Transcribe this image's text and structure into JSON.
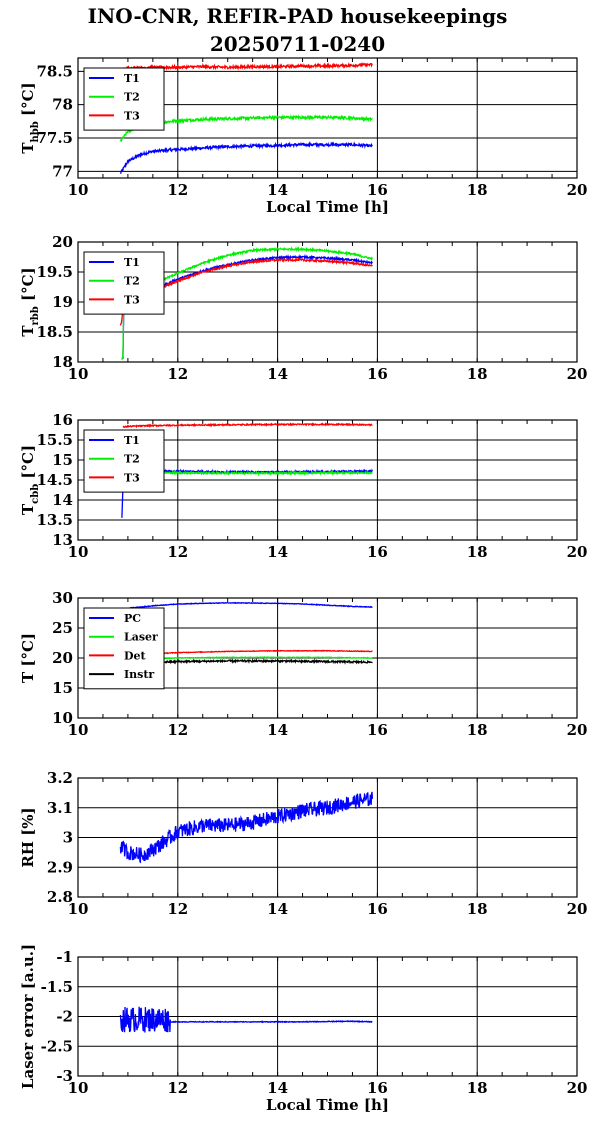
{
  "title_line1": "INO-CNR, REFIR-PAD housekeepings",
  "title_line2": "20250711-0240",
  "colors": {
    "blue": "#0000ff",
    "green": "#00ee00",
    "red": "#ff0000",
    "black": "#000000"
  },
  "chart_data": [
    {
      "type": "line",
      "ylabel_main": "T",
      "ylabel_sub": "hbb",
      "ylabel_unit": "[°C]",
      "xlabel": "Local Time [h]",
      "xlim": [
        10,
        20
      ],
      "xticks": [
        10,
        12,
        14,
        16,
        18,
        20
      ],
      "ylim": [
        76.9,
        78.7
      ],
      "yticks": [
        77,
        77.5,
        78,
        78.5
      ],
      "grid": true,
      "legend": "top-left",
      "series": [
        {
          "name": "T1",
          "color": "blue",
          "x": [
            10.85,
            11.0,
            11.25,
            11.5,
            12.0,
            12.5,
            13.0,
            13.5,
            14.0,
            14.5,
            15.0,
            15.5,
            15.9
          ],
          "y": [
            76.97,
            77.15,
            77.25,
            77.3,
            77.33,
            77.35,
            77.37,
            77.38,
            77.39,
            77.4,
            77.4,
            77.4,
            77.38
          ],
          "noise": 0.02
        },
        {
          "name": "T2",
          "color": "green",
          "x": [
            10.85,
            11.0,
            11.25,
            11.5,
            12.0,
            12.5,
            13.0,
            13.5,
            14.0,
            14.5,
            15.0,
            15.5,
            15.9
          ],
          "y": [
            77.45,
            77.6,
            77.68,
            77.72,
            77.76,
            77.78,
            77.79,
            77.8,
            77.81,
            77.81,
            77.81,
            77.8,
            77.78
          ],
          "noise": 0.02
        },
        {
          "name": "T3",
          "color": "red",
          "x": [
            10.85,
            11.0,
            11.5,
            12.0,
            12.5,
            13.0,
            13.5,
            14.0,
            14.5,
            15.0,
            15.5,
            15.9
          ],
          "y": [
            78.52,
            78.55,
            78.56,
            78.56,
            78.57,
            78.56,
            78.57,
            78.57,
            78.58,
            78.58,
            78.59,
            78.6
          ],
          "noise": 0.02
        }
      ]
    },
    {
      "type": "line",
      "ylabel_main": "T",
      "ylabel_sub": "rbb",
      "ylabel_unit": "[°C]",
      "xlim": [
        10,
        20
      ],
      "xticks": [
        10,
        12,
        14,
        16,
        18,
        20
      ],
      "ylim": [
        18,
        20
      ],
      "yticks": [
        18,
        18.5,
        19,
        19.5,
        20
      ],
      "grid": true,
      "legend": "top-left",
      "series": [
        {
          "name": "T1",
          "color": "blue",
          "x": [
            10.9,
            10.92,
            11.0,
            11.5,
            12.0,
            12.5,
            13.0,
            13.5,
            14.0,
            14.5,
            15.0,
            15.5,
            15.9
          ],
          "y": [
            18.05,
            19.0,
            19.1,
            19.2,
            19.38,
            19.52,
            19.62,
            19.7,
            19.74,
            19.75,
            19.73,
            19.7,
            19.65
          ],
          "noise": 0.015
        },
        {
          "name": "T2",
          "color": "green",
          "x": [
            10.88,
            10.9,
            10.92,
            11.0,
            11.5,
            12.0,
            12.5,
            13.0,
            13.5,
            14.0,
            14.5,
            15.0,
            15.5,
            15.9
          ],
          "y": [
            18.05,
            18.1,
            19.1,
            19.2,
            19.3,
            19.48,
            19.65,
            19.78,
            19.86,
            19.88,
            19.88,
            19.85,
            19.8,
            19.72
          ],
          "noise": 0.015
        },
        {
          "name": "T3",
          "color": "red",
          "x": [
            10.85,
            10.88,
            10.92,
            11.0,
            11.5,
            12.0,
            12.5,
            13.0,
            13.5,
            14.0,
            14.5,
            15.0,
            15.5,
            15.9
          ],
          "y": [
            18.6,
            18.7,
            19.05,
            19.08,
            19.18,
            19.35,
            19.5,
            19.6,
            19.67,
            19.7,
            19.7,
            19.68,
            19.65,
            19.6
          ],
          "noise": 0.015
        }
      ]
    },
    {
      "type": "line",
      "ylabel_main": "T",
      "ylabel_sub": "cbb",
      "ylabel_unit": "[°C]",
      "xlim": [
        10,
        20
      ],
      "xticks": [
        10,
        12,
        14,
        16,
        18,
        20
      ],
      "ylim": [
        13,
        16
      ],
      "yticks": [
        13,
        13.5,
        14,
        14.5,
        15,
        15.5,
        16
      ],
      "grid": true,
      "legend": "top-left",
      "series": [
        {
          "name": "T1",
          "color": "blue",
          "x": [
            10.88,
            10.9,
            10.95,
            11.0,
            11.5,
            12.0,
            13.0,
            14.0,
            15.0,
            15.9
          ],
          "y": [
            13.55,
            14.3,
            14.72,
            14.73,
            14.72,
            14.72,
            14.7,
            14.7,
            14.71,
            14.72
          ],
          "noise": 0.02
        },
        {
          "name": "T2",
          "color": "green",
          "x": [
            10.9,
            11.0,
            11.5,
            12.0,
            13.0,
            14.0,
            15.0,
            15.9
          ],
          "y": [
            14.75,
            14.7,
            14.68,
            14.68,
            14.67,
            14.67,
            14.68,
            14.68
          ],
          "noise": 0.02
        },
        {
          "name": "T3",
          "color": "red",
          "x": [
            10.9,
            11.0,
            11.5,
            12.0,
            13.0,
            14.0,
            15.0,
            15.9
          ],
          "y": [
            15.82,
            15.84,
            15.86,
            15.87,
            15.88,
            15.89,
            15.89,
            15.88
          ],
          "noise": 0.015
        }
      ]
    },
    {
      "type": "line",
      "ylabel_main": "T [°C]",
      "ylabel_sub": "",
      "ylabel_unit": "",
      "xlim": [
        10,
        20
      ],
      "xticks": [
        10,
        12,
        14,
        16,
        18,
        20
      ],
      "ylim": [
        10,
        30
      ],
      "yticks": [
        10,
        15,
        20,
        25,
        30
      ],
      "grid": true,
      "legend": "top-left",
      "series": [
        {
          "name": "PC",
          "color": "blue",
          "x": [
            11.0,
            11.5,
            12.0,
            12.5,
            13.0,
            13.5,
            14.0,
            14.5,
            15.0,
            15.5,
            15.9
          ],
          "y": [
            28.3,
            28.7,
            29.0,
            29.1,
            29.2,
            29.15,
            29.1,
            29.0,
            28.8,
            28.6,
            28.5
          ],
          "noise": 0.05
        },
        {
          "name": "Laser",
          "color": "green",
          "x": [
            11.0,
            12.0,
            13.0,
            14.0,
            15.0,
            15.9
          ],
          "y": [
            19.8,
            20.0,
            20.1,
            20.1,
            20.1,
            20.0
          ],
          "noise": 0.05
        },
        {
          "name": "Det",
          "color": "red",
          "x": [
            11.0,
            11.5,
            12.0,
            13.0,
            14.0,
            15.0,
            15.9
          ],
          "y": [
            20.5,
            20.7,
            20.9,
            21.1,
            21.2,
            21.2,
            21.1
          ],
          "noise": 0.05
        },
        {
          "name": "Instr",
          "color": "black",
          "x": [
            11.0,
            12.0,
            13.0,
            14.0,
            15.0,
            15.9
          ],
          "y": [
            19.2,
            19.4,
            19.5,
            19.5,
            19.4,
            19.3
          ],
          "noise": 0.15
        }
      ]
    },
    {
      "type": "line",
      "ylabel_main": "RH [%]",
      "ylabel_sub": "",
      "ylabel_unit": "",
      "xlim": [
        10,
        20
      ],
      "xticks": [
        10,
        12,
        14,
        16,
        18,
        20
      ],
      "ylim": [
        2.8,
        3.2
      ],
      "yticks": [
        2.8,
        2.9,
        3,
        3.1,
        3.2
      ],
      "grid": true,
      "legend": "none",
      "series": [
        {
          "name": "",
          "color": "blue",
          "x": [
            10.85,
            11.0,
            11.3,
            11.6,
            12.0,
            12.5,
            13.0,
            13.5,
            14.0,
            14.5,
            15.0,
            15.5,
            15.9
          ],
          "y": [
            2.97,
            2.95,
            2.94,
            2.97,
            3.02,
            3.04,
            3.04,
            3.05,
            3.07,
            3.09,
            3.1,
            3.12,
            3.13
          ],
          "noise": 0.025
        }
      ]
    },
    {
      "type": "line",
      "ylabel_main": "Laser error [a.u.]",
      "ylabel_sub": "",
      "ylabel_unit": "",
      "xlabel": "Local Time [h]",
      "xlim": [
        10,
        20
      ],
      "xticks": [
        10,
        12,
        14,
        16,
        18,
        20
      ],
      "ylim": [
        -3,
        -1
      ],
      "yticks": [
        -3,
        -2.5,
        -2,
        -1.5,
        -1
      ],
      "grid": true,
      "legend": "none",
      "series": [
        {
          "name": "",
          "color": "blue",
          "x": [
            10.85,
            11.85
          ],
          "y": [
            -2.05,
            -2.05
          ],
          "noise": 0.22
        },
        {
          "name": "",
          "color": "blue",
          "x": [
            11.85,
            12.5,
            13.5,
            14.5,
            15.5,
            15.9
          ],
          "y": [
            -2.09,
            -2.09,
            -2.09,
            -2.09,
            -2.08,
            -2.09
          ],
          "noise": 0.006
        }
      ]
    }
  ]
}
